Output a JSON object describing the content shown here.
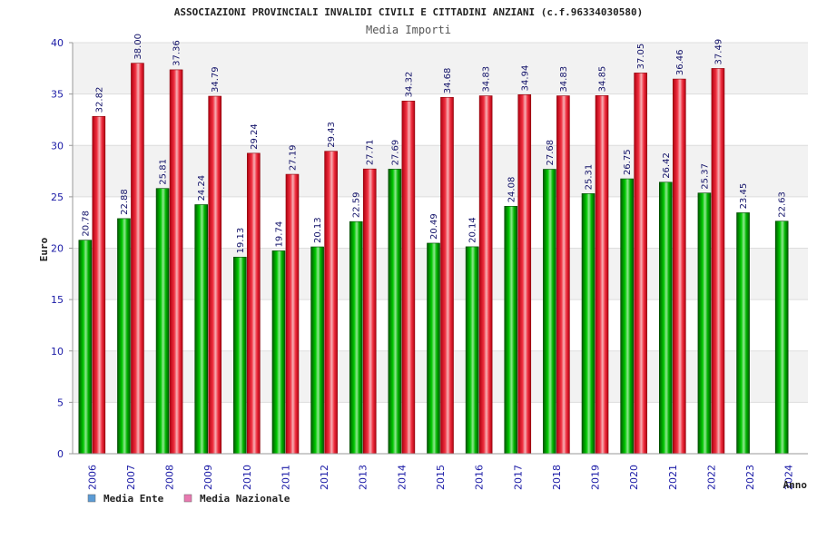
{
  "chart_data": {
    "type": "bar",
    "title": "ASSOCIAZIONI PROVINCIALI INVALIDI CIVILI E CITTADINI ANZIANI (c.f.96334030580)",
    "subtitle": "Media Importi",
    "xlabel": "Anno",
    "ylabel": "Euro",
    "ylim": [
      0,
      40
    ],
    "yticks": [
      0,
      5,
      10,
      15,
      20,
      25,
      30,
      35,
      40
    ],
    "categories": [
      "2006",
      "2007",
      "2008",
      "2009",
      "2010",
      "2011",
      "2012",
      "2013",
      "2014",
      "2015",
      "2016",
      "2017",
      "2018",
      "2019",
      "2020",
      "2021",
      "2022",
      "2023",
      "2024"
    ],
    "series": [
      {
        "name": "Media Ente",
        "color": "#00a000",
        "legend_color": "#5b9bd5",
        "values": [
          20.78,
          22.88,
          25.81,
          24.24,
          19.13,
          19.74,
          20.13,
          22.59,
          27.69,
          20.49,
          20.14,
          24.08,
          27.68,
          25.31,
          26.75,
          26.42,
          25.37,
          23.45,
          22.63
        ],
        "labels": [
          "20.78",
          "22.88",
          "25.81",
          "24.24",
          "19.13",
          "19.74",
          "20.13",
          "22.59",
          "27.69",
          "20.49",
          "20.14",
          "24.08",
          "27.68",
          "25.31",
          "26.75",
          "26.42",
          "25.37",
          "23.45",
          "22.63"
        ]
      },
      {
        "name": "Media Nazionale",
        "color": "#e8202a",
        "legend_color": "#e879b0",
        "values": [
          32.82,
          38.0,
          37.36,
          34.79,
          29.24,
          27.19,
          29.43,
          27.71,
          34.32,
          34.68,
          34.83,
          34.94,
          34.83,
          34.85,
          37.05,
          36.46,
          37.49,
          null,
          null
        ],
        "labels": [
          "32.82",
          "38.00",
          "37.36",
          "34.79",
          "29.24",
          "27.19",
          "29.43",
          "27.71",
          "34.32",
          "34.68",
          "34.83",
          "34.94",
          "34.83",
          "34.85",
          "37.05",
          "36.46",
          "37.49",
          "",
          ""
        ]
      }
    ],
    "grid": true,
    "legend": "bottom-left"
  }
}
